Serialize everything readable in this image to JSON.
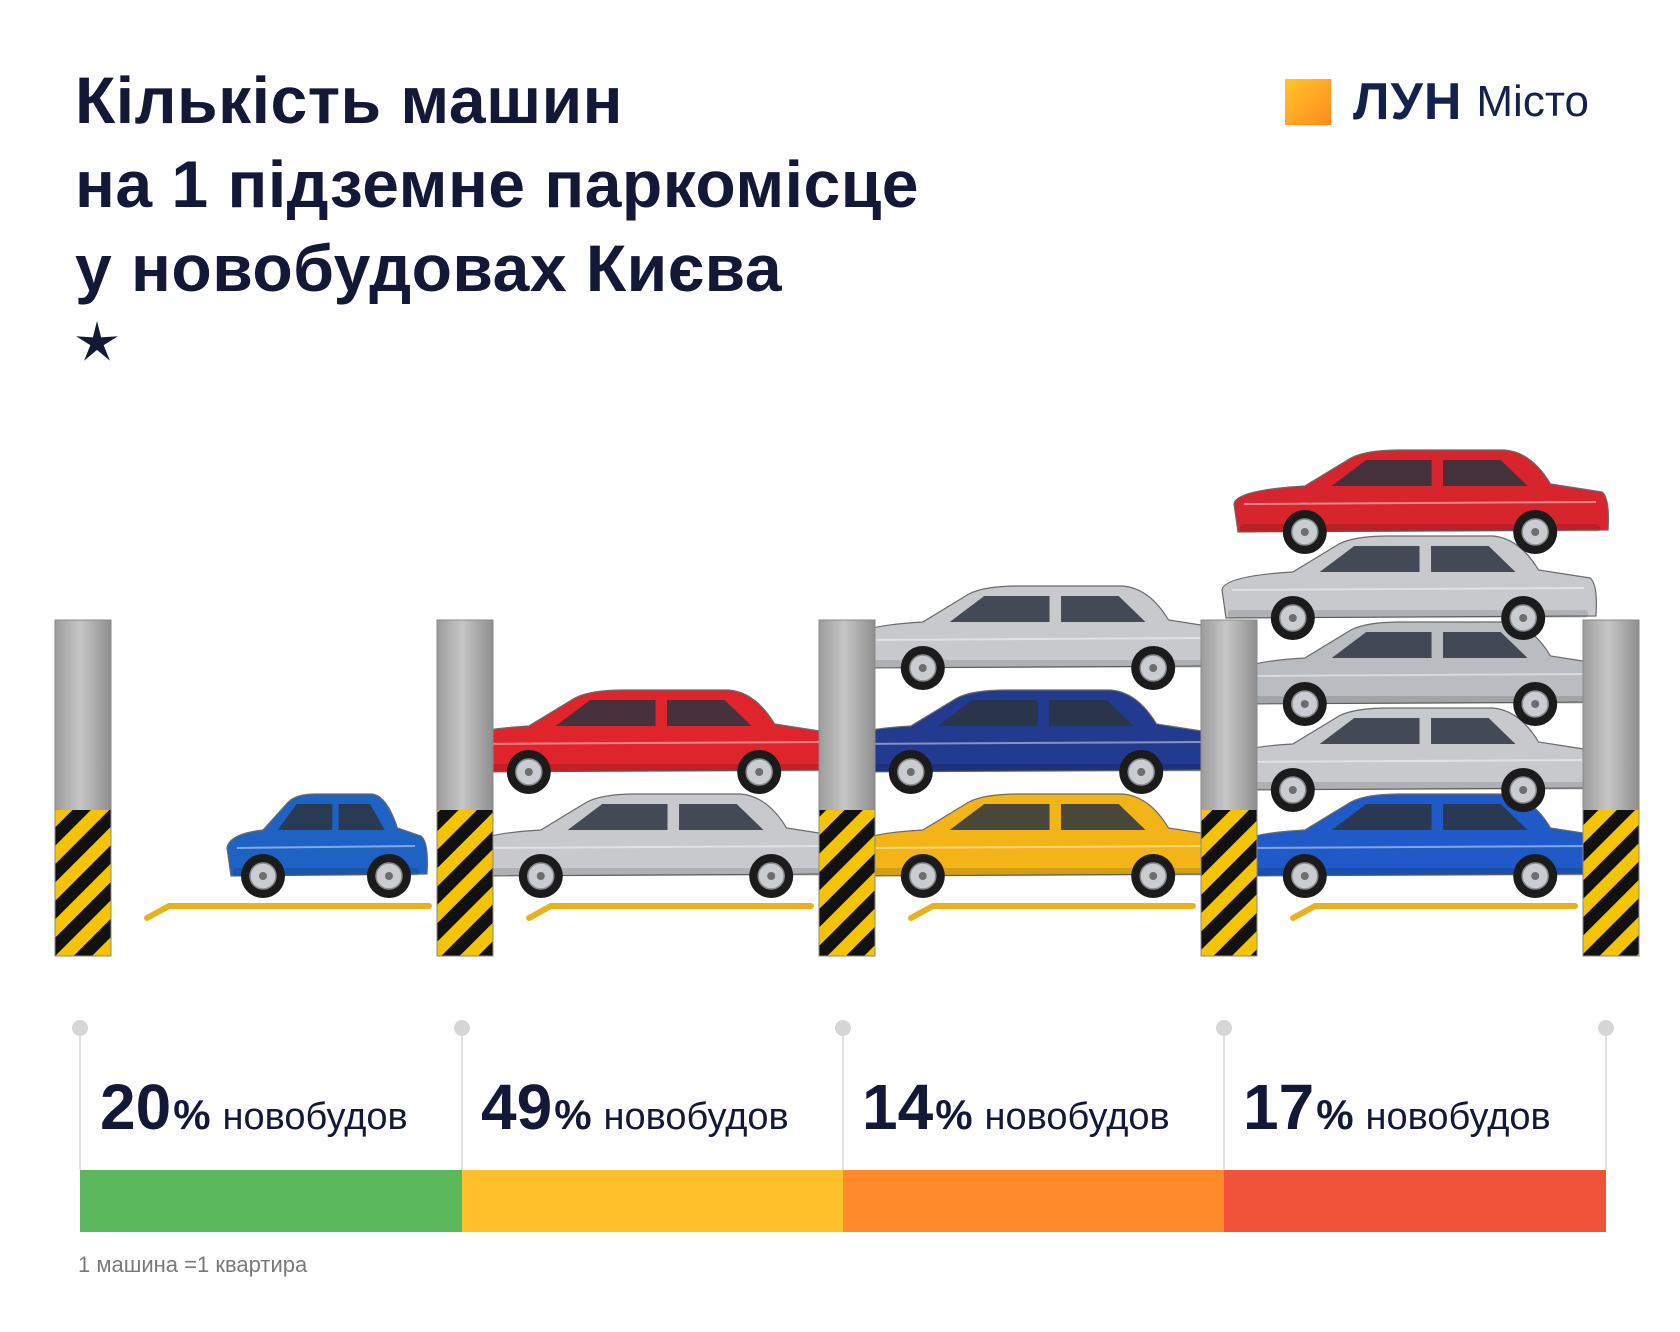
{
  "title_lines": [
    "Кількість машин",
    "на 1 підземне паркомісце",
    "у новобудовах Києва"
  ],
  "logo": {
    "brand": "ЛУН",
    "sub": "Місто"
  },
  "footnote": "1 машина =1 квартира",
  "chart_data": {
    "type": "bar",
    "categories": [
      "1",
      "2",
      "3",
      "4"
    ],
    "cars_per_spot": [
      1,
      2,
      3,
      5
    ],
    "values": [
      20,
      49,
      14,
      17
    ],
    "value_suffix": "%",
    "value_word": "новобудов",
    "colors": [
      "#5cb85c",
      "#ffc12b",
      "#ff8a2a",
      "#f0533a"
    ],
    "car_colors": [
      [
        "#1e63c4"
      ],
      [
        "#c7c9cc",
        "#e0242b"
      ],
      [
        "#f2b417",
        "#223a8f",
        "#c7c9cc"
      ],
      [
        "#1f5ac8",
        "#c7c9cc",
        "#b9bcc0",
        "#c7c9cc",
        "#d8242d"
      ]
    ]
  },
  "labels": [
    {
      "num": "20",
      "sign": "%",
      "word": "новобудов"
    },
    {
      "num": "49",
      "sign": "%",
      "word": "новобудов"
    },
    {
      "num": "14",
      "sign": "%",
      "word": "новобудов"
    },
    {
      "num": "17",
      "sign": "%",
      "word": "новобудов"
    }
  ]
}
